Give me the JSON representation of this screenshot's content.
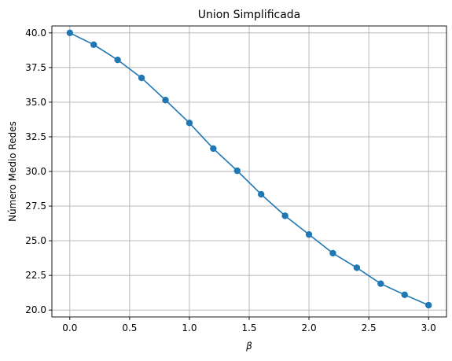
{
  "chart_data": {
    "type": "line",
    "title": "Union Simplificada",
    "xlabel": "β",
    "ylabel": "Número Medio Redes",
    "xlim": [
      -0.15,
      3.15
    ],
    "ylim": [
      19.5,
      40.5
    ],
    "xticks": [
      0.0,
      0.5,
      1.0,
      1.5,
      2.0,
      2.5,
      3.0
    ],
    "xtick_labels": [
      "0.0",
      "0.5",
      "1.0",
      "1.5",
      "2.0",
      "2.5",
      "3.0"
    ],
    "yticks": [
      20.0,
      22.5,
      25.0,
      27.5,
      30.0,
      32.5,
      35.0,
      37.5,
      40.0
    ],
    "ytick_labels": [
      "20.0",
      "22.5",
      "25.0",
      "27.5",
      "30.0",
      "32.5",
      "35.0",
      "37.5",
      "40.0"
    ],
    "grid": true,
    "series": [
      {
        "color": "#1f77b4",
        "marker": "circle",
        "x": [
          0.0,
          0.2,
          0.4,
          0.6,
          0.8,
          1.0,
          1.2,
          1.4,
          1.6,
          1.8,
          2.0,
          2.2,
          2.4,
          2.6,
          2.8,
          3.0
        ],
        "y": [
          40.0,
          39.15,
          38.05,
          36.75,
          35.15,
          33.5,
          31.65,
          30.05,
          28.35,
          26.8,
          25.45,
          24.1,
          23.05,
          21.9,
          21.1,
          20.35
        ]
      }
    ]
  }
}
